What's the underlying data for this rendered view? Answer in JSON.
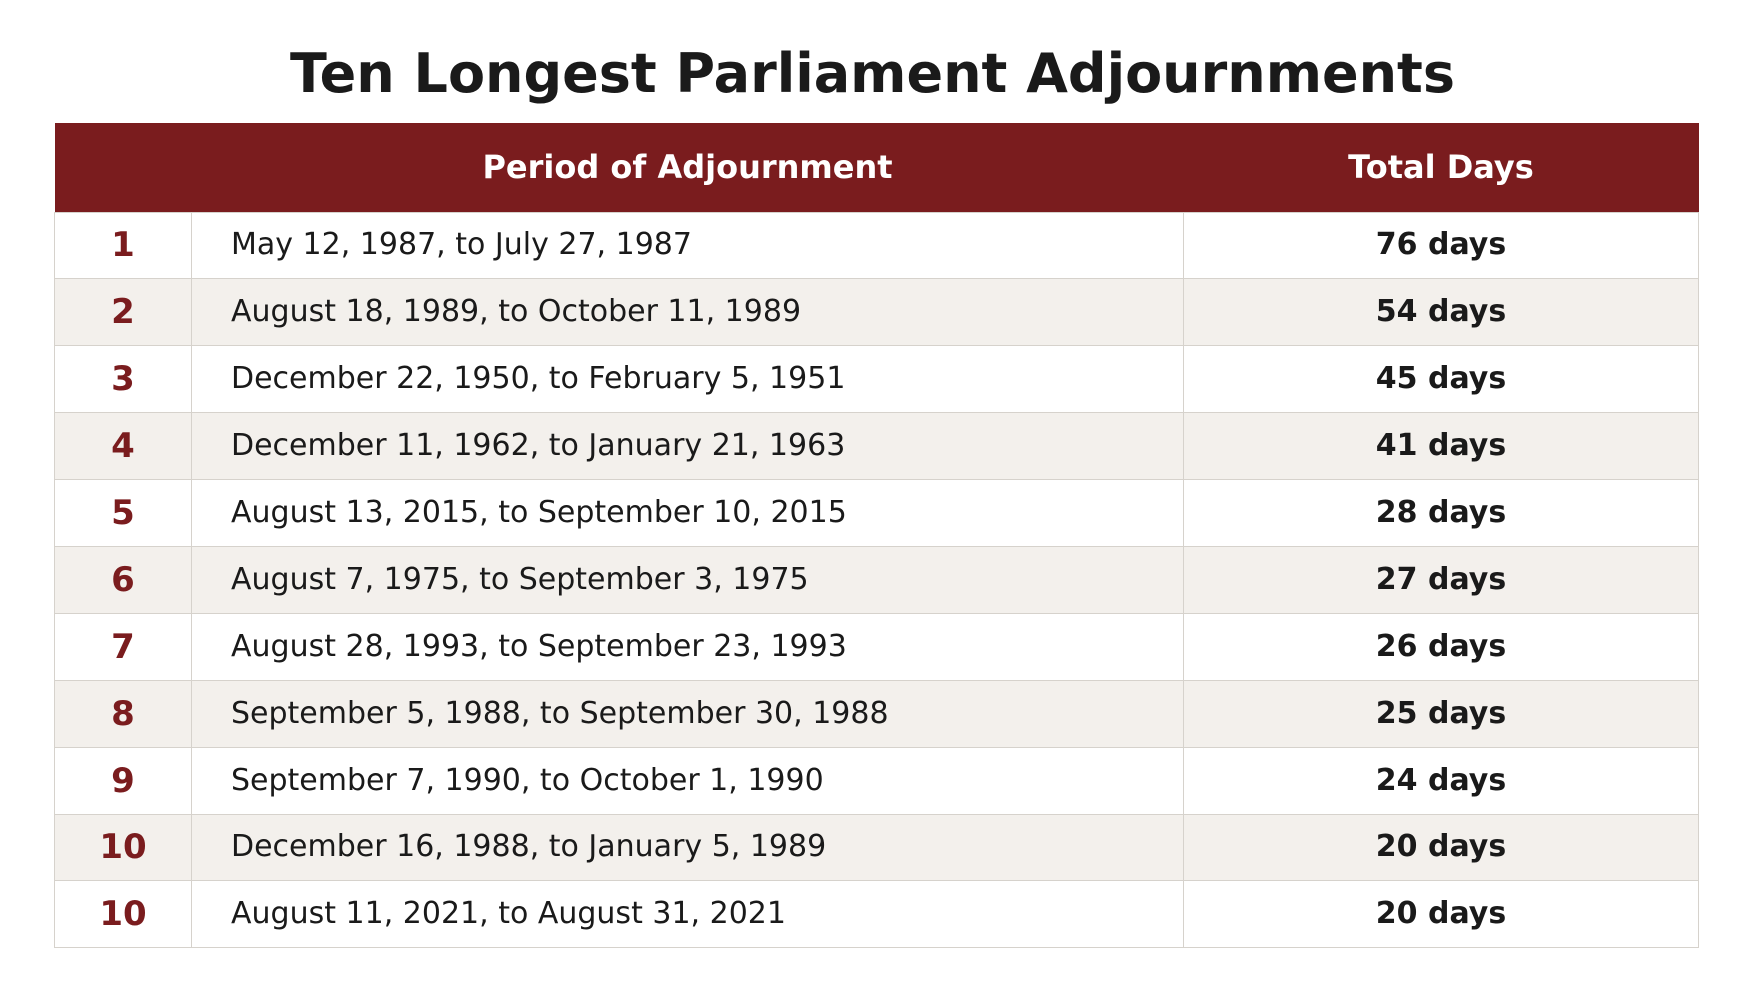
{
  "colors": {
    "header_bg": "#7a1c1e",
    "rank_text": "#7a1c1e",
    "stripe_bg": "#f3f0ec",
    "border": "#d6d2cc"
  },
  "chart_data": {
    "type": "table",
    "title": "Ten Longest Parliament Adjournments",
    "columns": [
      "",
      "Period of Adjournment",
      "Total Days"
    ],
    "rows": [
      {
        "rank": "1",
        "period": "May 12, 1987, to July 27, 1987",
        "days": "76 days"
      },
      {
        "rank": "2",
        "period": "August 18, 1989, to October 11, 1989",
        "days": "54 days"
      },
      {
        "rank": "3",
        "period": "December 22, 1950, to February 5, 1951",
        "days": "45 days"
      },
      {
        "rank": "4",
        "period": "December 11, 1962, to January 21, 1963",
        "days": "41 days"
      },
      {
        "rank": "5",
        "period": "August 13, 2015, to September 10, 2015",
        "days": "28 days"
      },
      {
        "rank": "6",
        "period": "August 7, 1975, to September 3, 1975",
        "days": "27 days"
      },
      {
        "rank": "7",
        "period": "August 28, 1993, to September 23, 1993",
        "days": "26 days"
      },
      {
        "rank": "8",
        "period": "September 5, 1988, to September 30, 1988",
        "days": "25 days"
      },
      {
        "rank": "9",
        "period": "September 7, 1990, to October 1, 1990",
        "days": "24 days"
      },
      {
        "rank": "10",
        "period": "December 16, 1988, to January 5, 1989",
        "days": "20 days"
      },
      {
        "rank": "10",
        "period": "August 11, 2021, to August 31, 2021",
        "days": "20 days"
      }
    ]
  }
}
